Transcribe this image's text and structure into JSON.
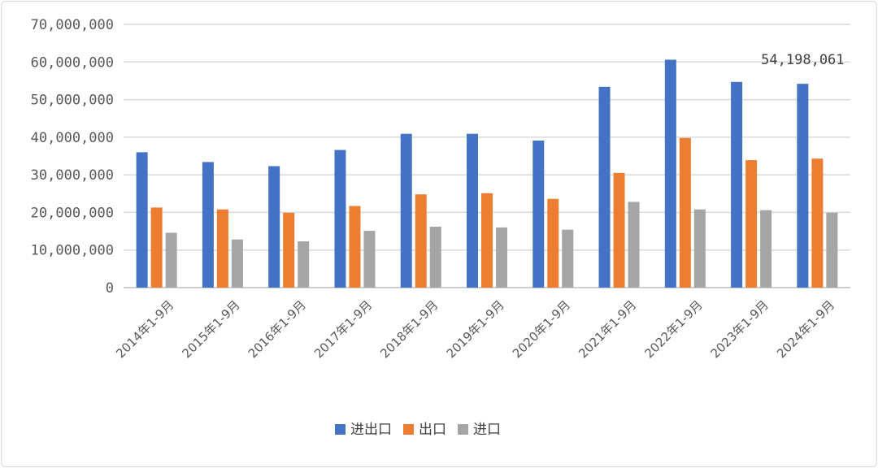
{
  "chart_data": {
    "type": "bar",
    "categories": [
      "2014年1-9月",
      "2015年1-9月",
      "2016年1-9月",
      "2017年1-9月",
      "2018年1-9月",
      "2019年1-9月",
      "2020年1-9月",
      "2021年1-9月",
      "2022年1-9月",
      "2023年1-9月",
      "2024年1-9月"
    ],
    "series": [
      {
        "name": "进出口",
        "color": "#4472c4",
        "values": [
          36000000,
          33400000,
          32300000,
          36600000,
          40900000,
          40900000,
          39100000,
          53400000,
          60600000,
          54700000,
          54198061
        ]
      },
      {
        "name": "出口",
        "color": "#ed7d31",
        "values": [
          21300000,
          20800000,
          19900000,
          21700000,
          24800000,
          25100000,
          23600000,
          30500000,
          39800000,
          33900000,
          34300000
        ]
      },
      {
        "name": "进口",
        "color": "#a5a5a5",
        "values": [
          14600000,
          12800000,
          12300000,
          15100000,
          16200000,
          16000000,
          15400000,
          22800000,
          20800000,
          20600000,
          19900000
        ]
      }
    ],
    "ytick_labels": [
      "0",
      "10,000,000",
      "20,000,000",
      "30,000,000",
      "40,000,000",
      "50,000,000",
      "60,000,000",
      "70,000,000"
    ],
    "ylim": [
      0,
      70000000
    ],
    "grid": true,
    "legend": "bottom",
    "annotations": [
      {
        "category_index": 10,
        "series_index": 0,
        "text": "54,198,061"
      }
    ]
  }
}
